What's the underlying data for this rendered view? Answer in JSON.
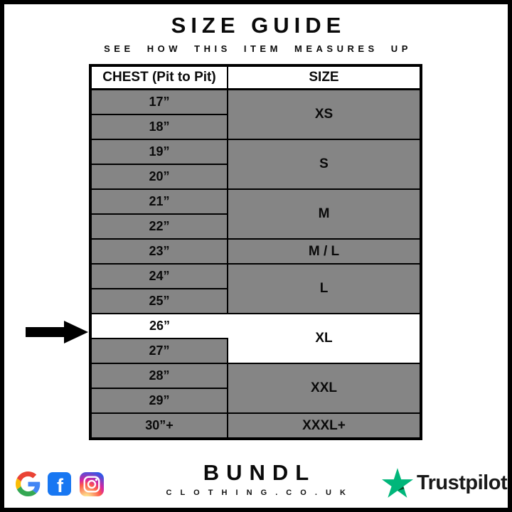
{
  "header": {
    "title": "SIZE GUIDE",
    "subtitle": "SEE HOW THIS ITEM MEASURES UP"
  },
  "table": {
    "chest_header": "CHEST (Pit to Pit)",
    "size_header": "SIZE",
    "groups": [
      {
        "size": "XS",
        "chest": [
          "17”",
          "18”"
        ]
      },
      {
        "size": "S",
        "chest": [
          "19”",
          "20”"
        ]
      },
      {
        "size": "M",
        "chest": [
          "21”",
          "22”"
        ]
      },
      {
        "size": "M / L",
        "chest": [
          "23”"
        ]
      },
      {
        "size": "L",
        "chest": [
          "24”",
          "25”"
        ]
      },
      {
        "size": "XL",
        "chest": [
          "26”",
          "27”"
        ],
        "highlighted": true,
        "highlighted_chest": "26”"
      },
      {
        "size": "XXL",
        "chest": [
          "28”",
          "29”"
        ]
      },
      {
        "size": "XXXL+",
        "chest": [
          "30”+"
        ]
      }
    ],
    "highlight": {
      "arrow_points_to_chest": "26”",
      "highlighted_size": "XL"
    }
  },
  "footer": {
    "brand": "BUNDL",
    "brand_domain": "C L O T H I N G . C O . U K",
    "trustpilot_label": "Trustpilot",
    "facebook_letter": "f",
    "social_icons": [
      "google-icon",
      "facebook-icon",
      "instagram-icon"
    ]
  },
  "colors": {
    "row_gray": "#858585",
    "highlight_white": "#ffffff",
    "border_black": "#000000",
    "facebook_blue": "#1877F2",
    "trustpilot_green": "#00B67A",
    "trustpilot_shadow_green": "#005128",
    "google_red": "#EA4335",
    "google_blue": "#4285F4",
    "google_yellow": "#FBBC05",
    "google_green": "#34A853"
  }
}
